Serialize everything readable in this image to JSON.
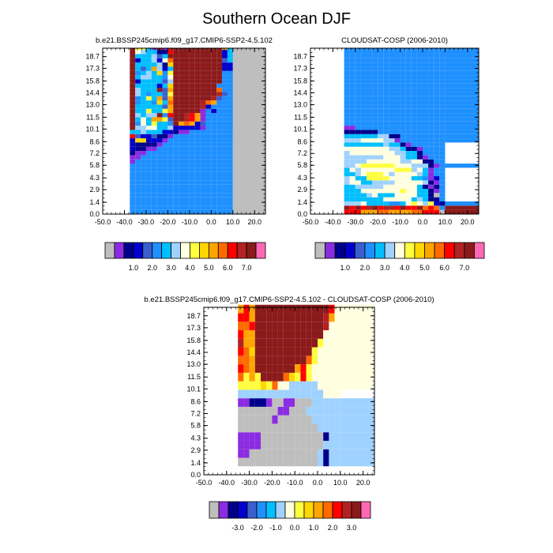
{
  "figure": {
    "title": "Southern Ocean DJF"
  },
  "colors": {
    "missing": "#bebebe",
    "scale_a": [
      "#bebebe",
      "#8b2be2",
      "#00008b",
      "#0000cd",
      "#3a5fcd",
      "#1e90ff",
      "#00bfff",
      "#a0d2ff",
      "#ffffe0",
      "#ffff40",
      "#ffd700",
      "#ffa500",
      "#ff6a00",
      "#ff0000",
      "#b22222",
      "#8b1a1a",
      "#ff69b4"
    ],
    "scale_diff": [
      "#bebebe",
      "#8b2be2",
      "#00008b",
      "#0000cd",
      "#3a5fcd",
      "#1e90ff",
      "#00bfff",
      "#a0d2ff",
      "#ffffe0",
      "#ffff40",
      "#ffd700",
      "#ffa500",
      "#ff6a00",
      "#ff0000",
      "#b22222",
      "#8b1a1a",
      "#ff69b4"
    ]
  },
  "chart_data": [
    {
      "type": "heatmap",
      "id": "model",
      "title": "b.e21.BSSP245cmip6.f09_g17.CMIP6-SSP2-4.5.102",
      "xlabel": "",
      "ylabel": "",
      "xlim": [
        -50,
        25
      ],
      "ylim": [
        0,
        19.7
      ],
      "x_ticks": [
        "-50.0",
        "-40.0",
        "-30.0",
        "-20.0",
        "-10.0",
        "0.0",
        "10.0",
        "20.0"
      ],
      "y_ticks": [
        "0.0",
        "1.4",
        "2.9",
        "4.3",
        "5.8",
        "7.2",
        "8.6",
        "10.1",
        "11.5",
        "13.0",
        "14.4",
        "15.8",
        "17.3",
        "18.7"
      ],
      "legend_labels": [
        "1.0",
        "2.0",
        "3.0",
        "4.0",
        "5.0",
        "6.0",
        "7.0"
      ],
      "x_edges": [
        -37.5,
        -35,
        -32.5,
        -30,
        -27.5,
        -25,
        -22.5,
        -20,
        -17.5,
        -15,
        -12.5,
        -10,
        -7.5,
        -5,
        -2.5,
        0,
        2.5,
        5,
        7.5,
        10
      ],
      "y_edges": [
        0,
        0.5,
        1,
        1.5,
        2,
        2.5,
        3,
        3.5,
        4,
        4.5,
        5,
        5.5,
        6,
        6.5,
        7,
        7.5,
        8,
        8.5,
        9,
        9.5,
        10,
        10.5,
        11,
        11.5,
        12,
        12.5,
        13,
        13.5,
        14,
        14.5,
        15,
        15.5,
        16,
        16.5,
        17,
        17.5,
        18,
        18.5,
        19,
        19.5
      ],
      "row_codes": [
        "5555555555555555555",
        "5555555555555555555",
        "5555555555555555555",
        "5555555555555555555",
        "5555555555555555555",
        "5555555555555555555",
        "5555555555555555555",
        "5555555555555555555",
        "5555555555555555555",
        "5555555555555555555",
        "5555555555555555555",
        "5555555555555555555",
        "1555555555555555555",
        "1155555555555555555",
        "2115555555555555555",
        "3221155555555555555",
        "3222215555555555555",
        "3aa3331555555555555",
        "d4334221555555555555",
        "6676663321155555555",
        "f7788667333331555555",
        "f5869665fbcb34555555",
        "f686bb94ffedb1555555",
        "f7677f5dffedb1555555",
        "f669669bfffff1535555",
        "f666664bfffffe355555",
        "f5665a6cfffffecb5555",
        "f5696b4bfffffffe4555",
        "f7656649ffffffffe455",
        "f7666f4bffffffffc555",
        "f666636affffffff5555",
        "f3666647fffffffff5555",
        "f6776658fffffffff5555",
        "f5676a59fffffffff5555",
        "f646b736fffffffff3355",
        "f666672afffffffff33a5",
        "f366738cfffffffff4655",
        "f666746ffffffffff3655",
        "f876622dfffffffff3655",
        "f9961f1efffffffffb655"
      ]
    },
    {
      "type": "heatmap",
      "id": "obs",
      "title": "CLOUDSAT-COSP (2006-2010)",
      "xlabel": "",
      "ylabel": "",
      "xlim": [
        -50,
        25
      ],
      "ylim": [
        0,
        19.7
      ],
      "x_ticks": [
        "-50.0",
        "-40.0",
        "-30.0",
        "-20.0",
        "-10.0",
        "0.0",
        "10.0",
        "20.0"
      ],
      "y_ticks": [
        "0.0",
        "1.4",
        "2.9",
        "4.3",
        "5.8",
        "7.2",
        "8.6",
        "10.1",
        "11.5",
        "13.0",
        "14.4",
        "15.8",
        "17.3",
        "18.7"
      ],
      "legend_labels": [
        "1.0",
        "2.0",
        "3.0",
        "4.0",
        "5.0",
        "6.0",
        "7.0"
      ],
      "x_edges": [
        -35,
        -32.5,
        -30,
        -27.5,
        -25,
        -22.5,
        -20,
        -17.5,
        -15,
        -12.5,
        -10,
        -7.5,
        -5,
        -2.5,
        0,
        2.5,
        5,
        7.5,
        10,
        25
      ],
      "y_edges": [
        0,
        0.5,
        1,
        1.5,
        2,
        2.5,
        3,
        3.5,
        4,
        4.5,
        5,
        5.5,
        6,
        6.5,
        7,
        7.5,
        8,
        8.5,
        9,
        9.5,
        10,
        10.5,
        11,
        11.5,
        12,
        12.5,
        13,
        13.5,
        14,
        14.5,
        15,
        15.5,
        16,
        16.5,
        17,
        17.5,
        18,
        18.5,
        19,
        19.5
      ],
      "row_codes": [
        "dddbbbccbbbbccddd0f",
        "fdfdefdeedfddfcdc5f",
        "7778666655689879325",
        "666666688888676225",
        "666678666888866205",
        "666888888898866215",
        "667777788888862125",
        "788667777888887215",
        "786699998888665135",
        "667899987888876155",
        "687888888999786155",
        "7789999998887772155",
        "777788888877882255",
        "777777788876621555",
        "788888888776625555",
        "888888887762215555",
        "666666676621555555",
        "7778888771555555555",
        "6666667722555555555",
        "2222225555555555555",
        "1155555555555555555",
        "5555555555555555555",
        "5555555555555555555",
        "5555555555555555555",
        "5555555555555555555",
        "5555555555555555555",
        "5555555555555555555",
        "5555555555555555555",
        "5555555555555555555",
        "5555555555555555555",
        "5555555555555555555",
        "5555555555555555555",
        "5555555555555555555",
        "5555555555555555555",
        "5555555555555555555",
        "5555555555555555555",
        "5555555555555555555",
        "5555555555555555555",
        "5555555555555555555",
        "5555555555555555555"
      ]
    },
    {
      "type": "heatmap",
      "id": "difference",
      "title": "b.e21.BSSP245cmip6.f09_g17.CMIP6-SSP2-4.5.102 - CLOUDSAT-COSP (2006-2010)",
      "xlabel": "",
      "ylabel": "",
      "xlim": [
        -50,
        25
      ],
      "ylim": [
        0,
        19.7
      ],
      "x_ticks": [
        "-50.0",
        "-40.0",
        "-30.0",
        "-20.0",
        "-10.0",
        "0.0",
        "10.0",
        "20.0"
      ],
      "y_ticks": [
        "0.0",
        "1.4",
        "2.9",
        "4.3",
        "5.8",
        "7.2",
        "8.6",
        "10.1",
        "11.5",
        "13.0",
        "14.4",
        "15.8",
        "17.3",
        "18.7"
      ],
      "legend_labels": [
        "-3.0",
        "-2.0",
        "-1.0",
        "0.0",
        "1.0",
        "2.0",
        "3.0"
      ],
      "x_edges": [
        -35,
        -32.5,
        -30,
        -27.5,
        -25,
        -22.5,
        -20,
        -17.5,
        -15,
        -12.5,
        -10,
        -7.5,
        -5,
        -2.5,
        0,
        2.5,
        5,
        7.5,
        10,
        25
      ],
      "y_edges": [
        1,
        2,
        3,
        4,
        5,
        6,
        7,
        8,
        9,
        10,
        11,
        12,
        13,
        14,
        15,
        16,
        17,
        18,
        19,
        20
      ],
      "row_codes": [
        "0000000000000072777",
        "1100000000000072777",
        "1111000000000007777",
        "1111000000000002777",
        "0000000000000077777",
        "0000001000000777777",
        "0000000110007777777",
        "1122210011000777777",
        "777777777777777888",
        "9999a9c8877777888888",
        "c9b9ffffca9d98888888",
        "dcbfffffffbd9888888",
        "ccbfffffffffc988888",
        "dcaffffffffff98888888",
        "ebbfffffffffff9888888",
        "dbbffffffffffff888888",
        "ccdffffffffffffe88888",
        "ddbffffffffffffeb8888",
        "bdbfffffffffffffd8888",
        "eefffffffffffffffa888"
      ]
    }
  ]
}
